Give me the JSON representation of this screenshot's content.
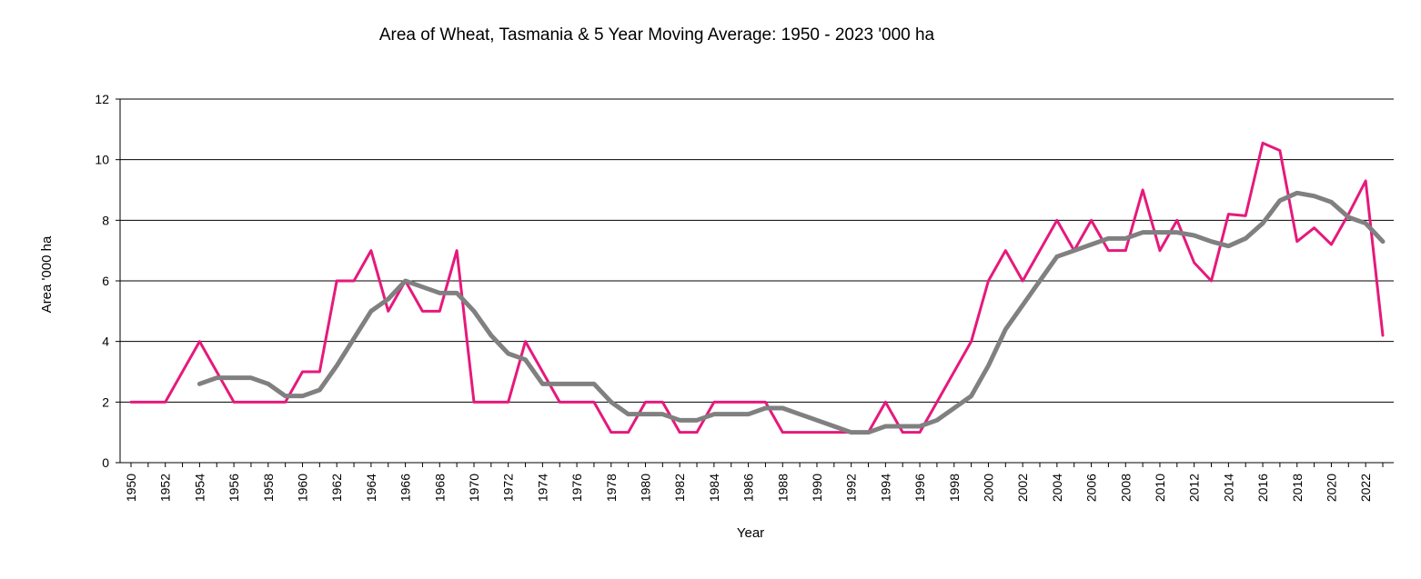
{
  "chart_data": {
    "type": "line",
    "title": "Area of Wheat, Tasmania & 5 Year Moving Average: 1950 - 2023 '000 ha",
    "xlabel": "Year",
    "ylabel": "Area '000 ha",
    "ylim": [
      0,
      12
    ],
    "yticks": [
      "0",
      "2",
      "4",
      "6",
      "8",
      "10",
      "12"
    ],
    "xlim": [
      1950,
      2023
    ],
    "xticks": [
      "1950",
      "1952",
      "1954",
      "1956",
      "1958",
      "1960",
      "1962",
      "1964",
      "1966",
      "1968",
      "1970",
      "1972",
      "1974",
      "1976",
      "1978",
      "1980",
      "1982",
      "1984",
      "1986",
      "1988",
      "1990",
      "1992",
      "1994",
      "1996",
      "1998",
      "2000",
      "2002",
      "2004",
      "2006",
      "2008",
      "2010",
      "2012",
      "2014",
      "2016",
      "2018",
      "2020",
      "2022"
    ],
    "grid": true,
    "legend": "none",
    "series": [
      {
        "name": "Area of Wheat",
        "color": "#e6197c",
        "start_year": 1950,
        "values": [
          2,
          2,
          2,
          3,
          4,
          3,
          2,
          2,
          2,
          2,
          3,
          3,
          6,
          6,
          7,
          5,
          6,
          5,
          5,
          7,
          2,
          2,
          2,
          4,
          3,
          2,
          2,
          2,
          1,
          1,
          2,
          2,
          1,
          1,
          2,
          2,
          2,
          2,
          1,
          1,
          1,
          1,
          1,
          1,
          2,
          1,
          1,
          2,
          3,
          4,
          6,
          7,
          6,
          7,
          8,
          7,
          8,
          7,
          7,
          9,
          7,
          8,
          6.6,
          6,
          8.2,
          8.15,
          10.55,
          10.3,
          7.3,
          7.75,
          7.2,
          8.2,
          9.3,
          4.2
        ]
      },
      {
        "name": "5 Year Moving Average",
        "color": "#808080",
        "start_year": 1954,
        "values": [
          2.6,
          2.8,
          2.8,
          2.8,
          2.6,
          2.2,
          2.2,
          2.4,
          3.2,
          4.1,
          5.0,
          5.4,
          6.0,
          5.8,
          5.6,
          5.6,
          5.0,
          4.2,
          3.6,
          3.4,
          2.6,
          2.6,
          2.6,
          2.6,
          2.0,
          1.6,
          1.6,
          1.6,
          1.4,
          1.4,
          1.6,
          1.6,
          1.6,
          1.8,
          1.8,
          1.6,
          1.4,
          1.2,
          1.0,
          1.0,
          1.2,
          1.2,
          1.2,
          1.4,
          1.8,
          2.2,
          3.2,
          4.4,
          5.2,
          6.0,
          6.8,
          7.0,
          7.2,
          7.4,
          7.4,
          7.6,
          7.6,
          7.6,
          7.5,
          7.3,
          7.15,
          7.4,
          7.9,
          8.65,
          8.9,
          8.8,
          8.6,
          8.1,
          7.9,
          7.3
        ]
      }
    ]
  }
}
